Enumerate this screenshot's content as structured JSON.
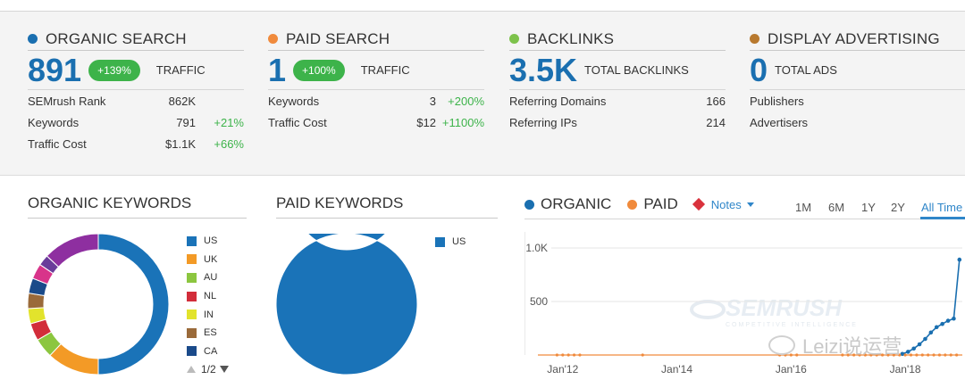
{
  "colors": {
    "organic": "#1a6fb0",
    "paid": "#f08a3c",
    "backlinks": "#7dc24b",
    "display": "#b8792e",
    "positive": "#3db34a",
    "notes": "#d9323c",
    "link": "#2f86c9"
  },
  "summary": {
    "organic": {
      "title": "ORGANIC SEARCH",
      "value": "891",
      "badge": "+139%",
      "label": "TRAFFIC",
      "rows": [
        {
          "label": "SEMrush Rank",
          "value": "862K",
          "change": ""
        },
        {
          "label": "Keywords",
          "value": "791",
          "change": "+21%"
        },
        {
          "label": "Traffic Cost",
          "value": "$1.1K",
          "change": "+66%"
        }
      ]
    },
    "paid": {
      "title": "PAID SEARCH",
      "value": "1",
      "badge": "+100%",
      "label": "TRAFFIC",
      "rows": [
        {
          "label": "Keywords",
          "value": "3",
          "change": "+200%"
        },
        {
          "label": "Traffic Cost",
          "value": "$12",
          "change": "+1100%"
        }
      ]
    },
    "backlinks": {
      "title": "BACKLINKS",
      "value": "3.5K",
      "label": "TOTAL BACKLINKS",
      "rows": [
        {
          "label": "Referring Domains",
          "value": "166"
        },
        {
          "label": "Referring IPs",
          "value": "214"
        }
      ]
    },
    "display": {
      "title": "DISPLAY ADVERTISING",
      "value": "0",
      "label": "TOTAL ADS",
      "rows": [
        {
          "label": "Publishers",
          "value": ""
        },
        {
          "label": "Advertisers",
          "value": ""
        }
      ]
    }
  },
  "organic_keywords": {
    "title": "ORGANIC KEYWORDS",
    "legend": [
      {
        "code": "US",
        "color": "#1a73b8"
      },
      {
        "code": "UK",
        "color": "#f39a26"
      },
      {
        "code": "AU",
        "color": "#8cc63f"
      },
      {
        "code": "NL",
        "color": "#d22d3a"
      },
      {
        "code": "IN",
        "color": "#e2e32c"
      },
      {
        "code": "ES",
        "color": "#9a6a3a"
      },
      {
        "code": "CA",
        "color": "#1a4a8a"
      }
    ],
    "pager": "1/2"
  },
  "paid_keywords": {
    "title": "PAID KEYWORDS",
    "legend": [
      {
        "code": "US",
        "color": "#1a73b8"
      }
    ]
  },
  "trend": {
    "legend_organic": "ORGANIC",
    "legend_paid": "PAID",
    "notes_label": "Notes",
    "ranges": [
      "1M",
      "6M",
      "1Y",
      "2Y",
      "All Time"
    ],
    "active_range": "All Time",
    "watermark_brand": "SEMRUSH",
    "watermark_tagline": "COMPETITIVE INTELLIGENCE",
    "account_watermark": "Leizi说运营"
  },
  "chart_data": {
    "type": "line",
    "title": "",
    "xlabel": "",
    "ylabel": "",
    "x_tick_labels": [
      "Jan'12",
      "Jan'14",
      "Jan'16",
      "Jan'18"
    ],
    "y_tick_labels": [
      "500",
      "1.0K"
    ],
    "ylim": [
      0,
      1150
    ],
    "series": [
      {
        "name": "ORGANIC",
        "color": "#1a6fb0",
        "points": [
          {
            "x": 2017.95,
            "y": 10
          },
          {
            "x": 2018.05,
            "y": 30
          },
          {
            "x": 2018.15,
            "y": 60
          },
          {
            "x": 2018.25,
            "y": 100
          },
          {
            "x": 2018.35,
            "y": 150
          },
          {
            "x": 2018.45,
            "y": 210
          },
          {
            "x": 2018.55,
            "y": 260
          },
          {
            "x": 2018.65,
            "y": 290
          },
          {
            "x": 2018.75,
            "y": 320
          },
          {
            "x": 2018.85,
            "y": 340
          },
          {
            "x": 2018.95,
            "y": 891
          }
        ]
      },
      {
        "name": "PAID",
        "color": "#f08a3c",
        "points": [
          {
            "x": 2011.9,
            "y": 0
          },
          {
            "x": 2012.0,
            "y": 0
          },
          {
            "x": 2012.1,
            "y": 0
          },
          {
            "x": 2012.2,
            "y": 0
          },
          {
            "x": 2012.3,
            "y": 0
          },
          {
            "x": 2013.4,
            "y": 0
          },
          {
            "x": 2015.8,
            "y": 0
          },
          {
            "x": 2015.9,
            "y": 0
          },
          {
            "x": 2016.0,
            "y": 0
          },
          {
            "x": 2016.1,
            "y": 0
          },
          {
            "x": 2016.9,
            "y": 0
          },
          {
            "x": 2017.0,
            "y": 0
          },
          {
            "x": 2017.1,
            "y": 0
          },
          {
            "x": 2017.2,
            "y": 0
          },
          {
            "x": 2017.3,
            "y": 0
          },
          {
            "x": 2017.4,
            "y": 0
          },
          {
            "x": 2017.5,
            "y": 0
          },
          {
            "x": 2017.6,
            "y": 0
          },
          {
            "x": 2017.7,
            "y": 0
          },
          {
            "x": 2017.8,
            "y": 0
          },
          {
            "x": 2017.9,
            "y": 0
          },
          {
            "x": 2018.0,
            "y": 0
          },
          {
            "x": 2018.1,
            "y": 0
          },
          {
            "x": 2018.2,
            "y": 0
          },
          {
            "x": 2018.3,
            "y": 0
          },
          {
            "x": 2018.4,
            "y": 0
          },
          {
            "x": 2018.5,
            "y": 0
          },
          {
            "x": 2018.6,
            "y": 0
          },
          {
            "x": 2018.7,
            "y": 0
          },
          {
            "x": 2018.8,
            "y": 0
          },
          {
            "x": 2018.9,
            "y": 0
          }
        ]
      }
    ],
    "grid": true,
    "legend": "top-left"
  },
  "pie_data": [
    {
      "type": "pie",
      "categories": [
        "US",
        "UK",
        "AU",
        "NL",
        "IN",
        "ES",
        "CA",
        "Other-1",
        "Other-2",
        "Other-3"
      ],
      "values": [
        0.5,
        0.12,
        0.045,
        0.04,
        0.035,
        0.035,
        0.035,
        0.035,
        0.025,
        0.13
      ]
    },
    {
      "type": "pie",
      "categories": [
        "US"
      ],
      "values": [
        1.0
      ]
    }
  ]
}
